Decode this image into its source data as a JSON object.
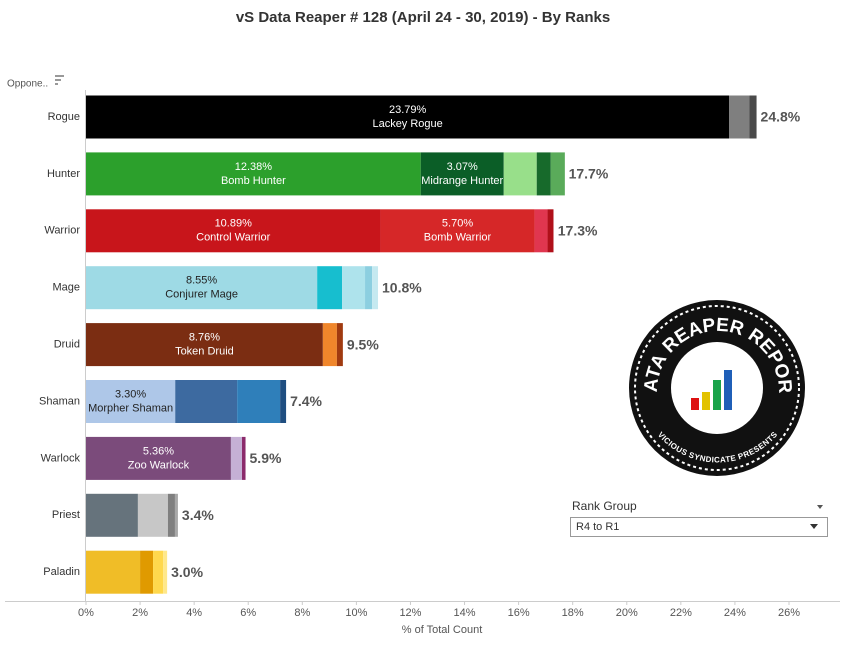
{
  "chart_data": {
    "type": "bar",
    "title": "vS Data Reaper #  128 (April 24 - 30, 2019) - By Ranks",
    "y_header": "Oppone..",
    "x_label": "% of Total Count",
    "categories": [
      "Rogue",
      "Hunter",
      "Warrior",
      "Mage",
      "Druid",
      "Shaman",
      "Warlock",
      "Priest",
      "Paladin"
    ],
    "totals": [
      24.8,
      17.7,
      17.3,
      10.8,
      9.5,
      7.4,
      5.9,
      3.4,
      3.0
    ],
    "total_labels": [
      "24.8%",
      "17.7%",
      "17.3%",
      "10.8%",
      "9.5%",
      "7.4%",
      "5.9%",
      "3.4%",
      "3.0%"
    ],
    "segments": [
      [
        {
          "value": 23.79,
          "label": "23.79%",
          "name": "Lackey Rogue",
          "color": "#000000"
        },
        {
          "value": 0.74,
          "color": "#7f7f7f"
        },
        {
          "value": 0.27,
          "color": "#4a4a4a"
        }
      ],
      [
        {
          "value": 12.38,
          "label": "12.38%",
          "name": "Bomb Hunter",
          "color": "#2ca02c"
        },
        {
          "value": 3.07,
          "label": "3.07%",
          "name": "Midrange Hunter",
          "color": "#0b5e27"
        },
        {
          "value": 1.22,
          "color": "#98df8a"
        },
        {
          "value": 0.52,
          "color": "#176a2b"
        },
        {
          "value": 0.52,
          "color": "#5aab5a"
        }
      ],
      [
        {
          "value": 10.89,
          "label": "10.89%",
          "name": "Control Warrior",
          "color": "#c8151b"
        },
        {
          "value": 5.7,
          "label": "5.70%",
          "name": "Bomb Warrior",
          "color": "#d62728"
        },
        {
          "value": 0.48,
          "color": "#e0364f"
        },
        {
          "value": 0.22,
          "color": "#b0101a"
        }
      ],
      [
        {
          "value": 8.55,
          "label": "8.55%",
          "name": "Conjurer Mage",
          "color": "#9edae5"
        },
        {
          "value": 0.92,
          "color": "#17becf"
        },
        {
          "value": 0.85,
          "color": "#aee3ec"
        },
        {
          "value": 0.26,
          "color": "#8ccfe0"
        },
        {
          "value": 0.22,
          "color": "#c5e9f0"
        }
      ],
      [
        {
          "value": 8.76,
          "label": "8.76%",
          "name": "Token Druid",
          "color": "#7b2d12"
        },
        {
          "value": 0.52,
          "color": "#f0862b"
        },
        {
          "value": 0.22,
          "color": "#a03a10"
        }
      ],
      [
        {
          "value": 3.3,
          "label": "3.30%",
          "name": "Morpher Shaman",
          "color": "#aec7e8"
        },
        {
          "value": 2.29,
          "color": "#3d6aa0"
        },
        {
          "value": 1.59,
          "color": "#2f7fba"
        },
        {
          "value": 0.22,
          "color": "#1f4e80"
        }
      ],
      [
        {
          "value": 5.36,
          "label": "5.36%",
          "name": "Zoo Warlock",
          "color": "#7b4b7b"
        },
        {
          "value": 0.41,
          "color": "#c5b0d5"
        },
        {
          "value": 0.13,
          "color": "#8b2a6b"
        }
      ],
      [
        {
          "value": 1.92,
          "color": "#66737c"
        },
        {
          "value": 1.11,
          "color": "#c7c7c7"
        },
        {
          "value": 0.26,
          "color": "#7f7f7f"
        },
        {
          "value": 0.11,
          "color": "#a8a8a8"
        }
      ],
      [
        {
          "value": 2.0,
          "color": "#f0bd27"
        },
        {
          "value": 0.48,
          "color": "#e09a00"
        },
        {
          "value": 0.37,
          "color": "#ffd84d"
        },
        {
          "value": 0.15,
          "color": "#ffe88a"
        }
      ]
    ],
    "xlim": [
      0,
      26
    ],
    "xticks": [
      {
        "value": 0,
        "label": "0%"
      },
      {
        "value": 2,
        "label": "2%"
      },
      {
        "value": 4,
        "label": "4%"
      },
      {
        "value": 6,
        "label": "6%"
      },
      {
        "value": 8,
        "label": "8%"
      },
      {
        "value": 10,
        "label": "10%"
      },
      {
        "value": 12,
        "label": "12%"
      },
      {
        "value": 14,
        "label": "14%"
      },
      {
        "value": 16,
        "label": "16%"
      },
      {
        "value": 18,
        "label": "18%"
      },
      {
        "value": 20,
        "label": "20%"
      },
      {
        "value": 22,
        "label": "22%"
      },
      {
        "value": 24,
        "label": "24%"
      },
      {
        "value": 26,
        "label": "26%"
      }
    ],
    "grid": false
  },
  "filter": {
    "title": "Rank Group",
    "value": "R4 to R1"
  },
  "logo": {
    "title": "DATA REAPER REPORT",
    "subtitle": "VICIOUS SYNDICATE PRESENTS"
  }
}
